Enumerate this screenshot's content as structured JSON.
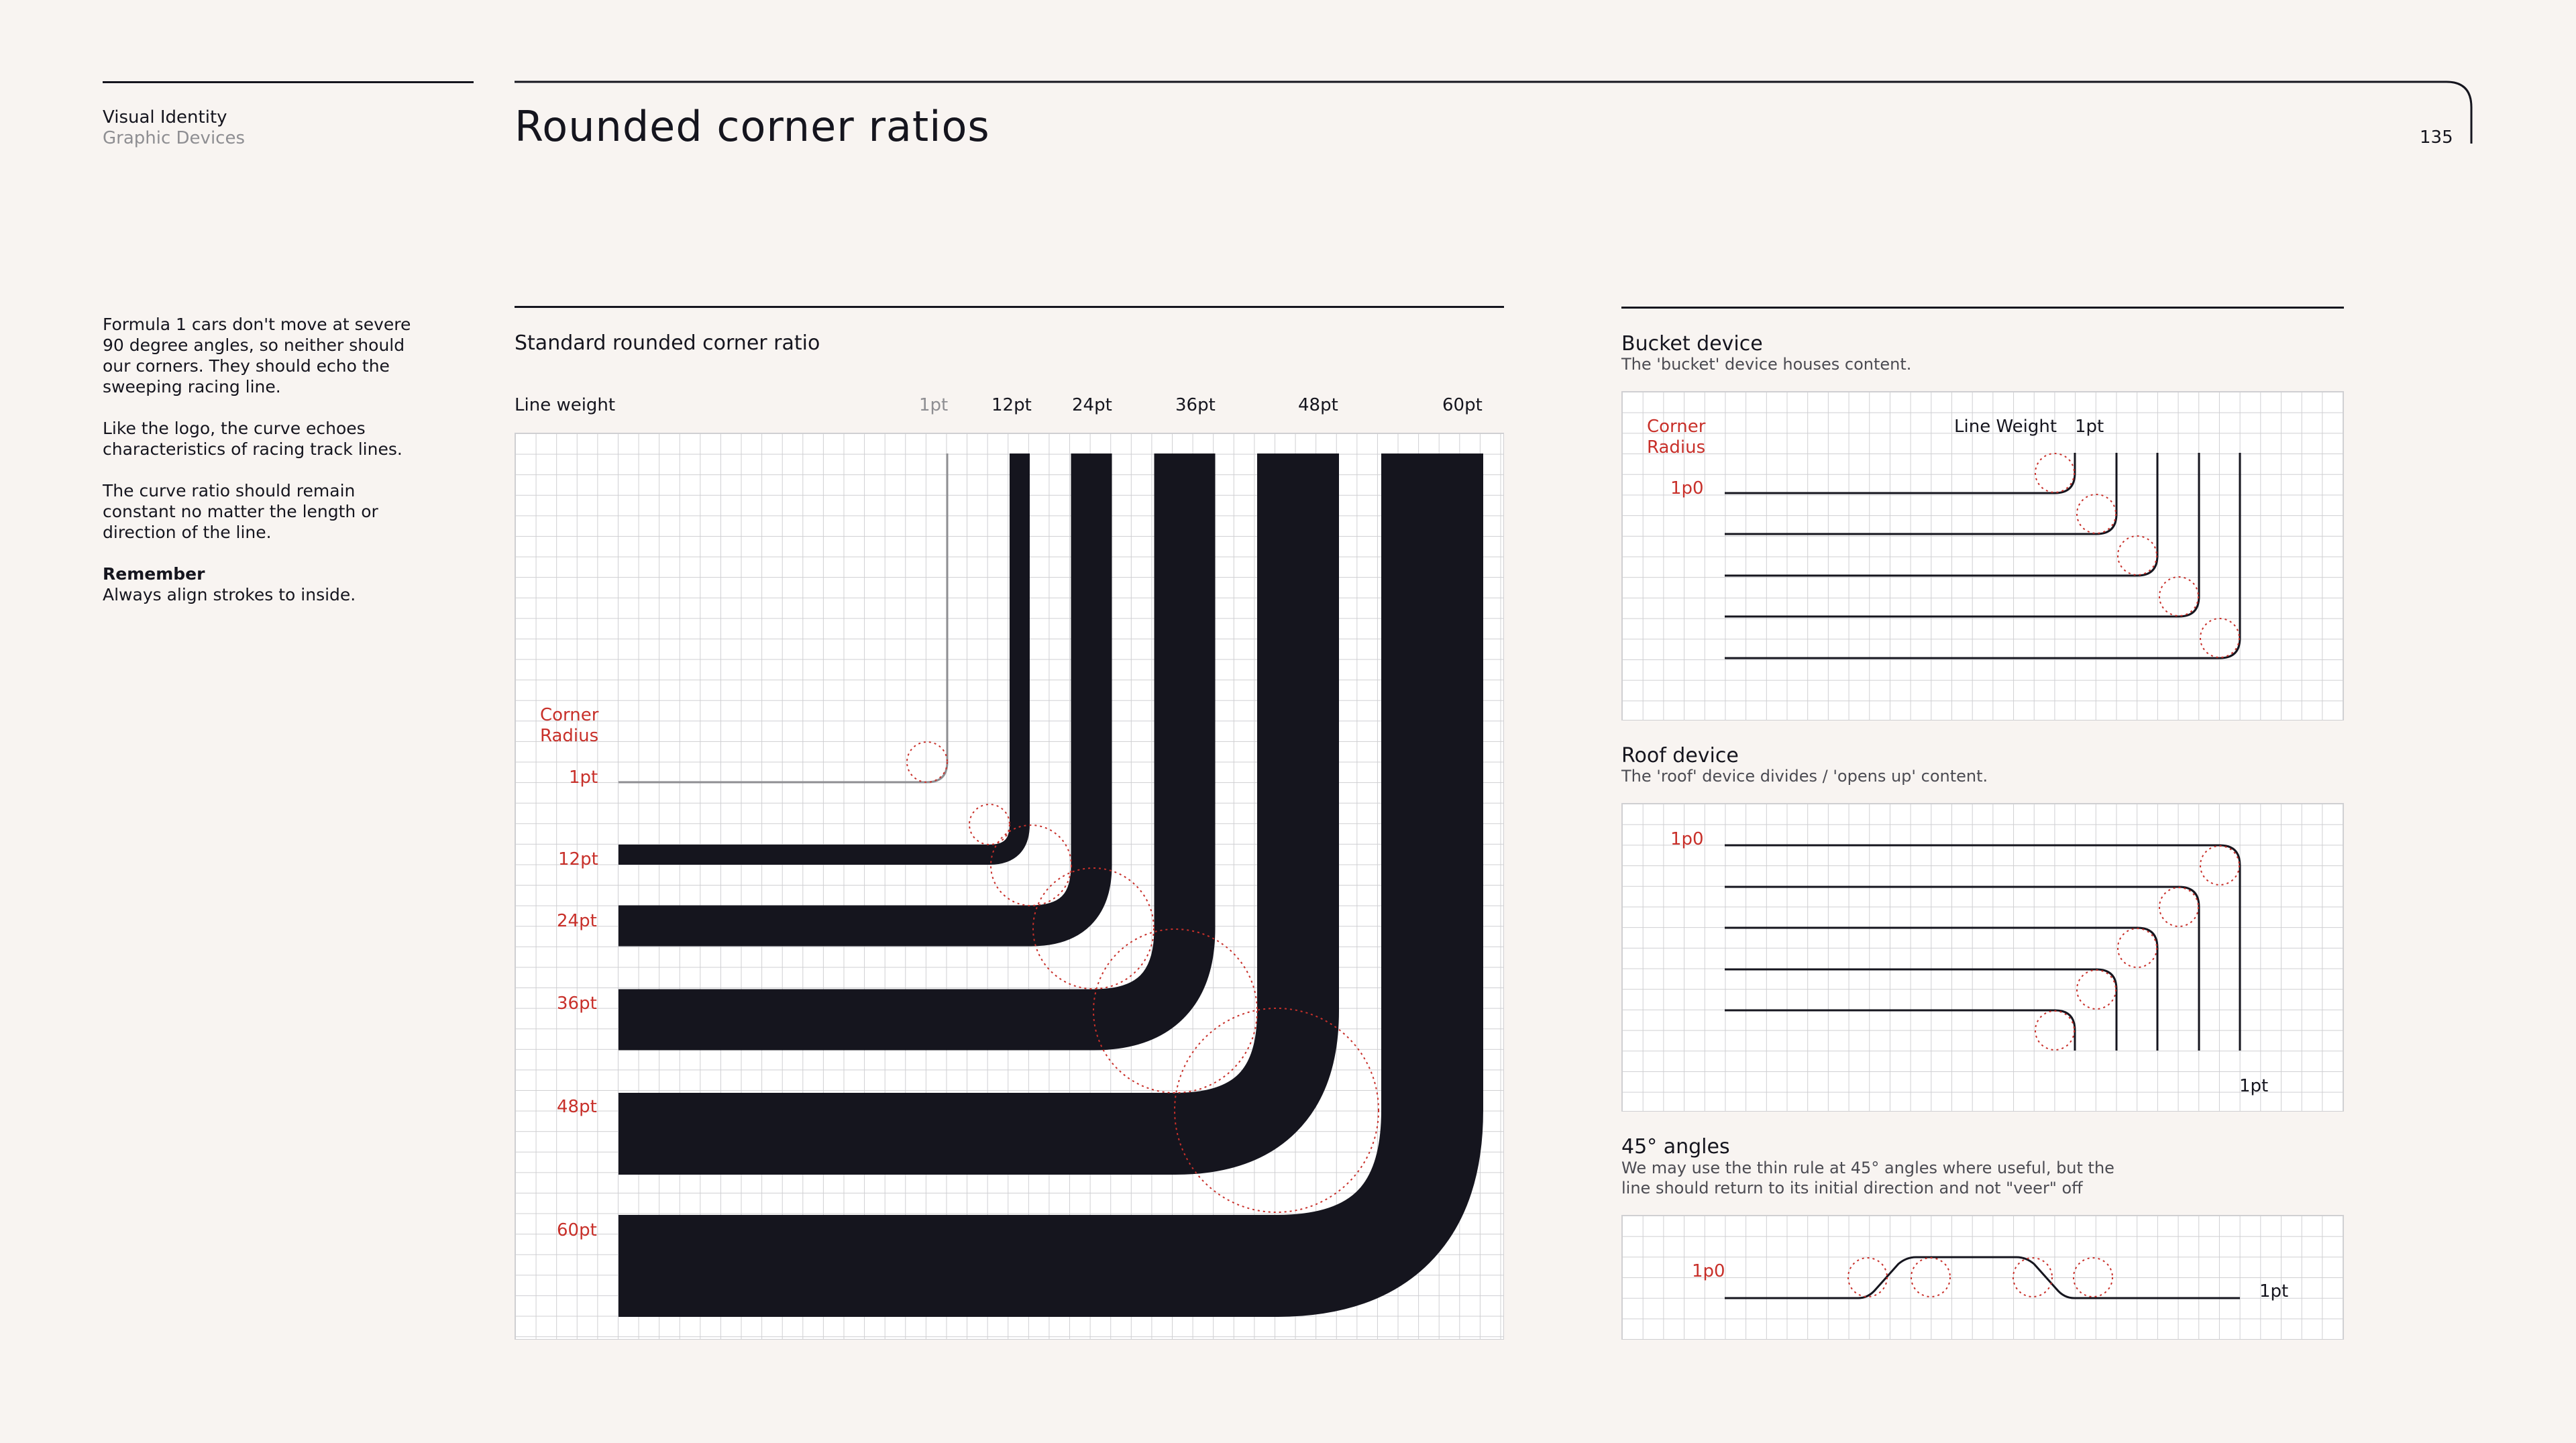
{
  "header": {
    "section": "Visual Identity",
    "subsection": "Graphic Devices",
    "title": "Rounded corner ratios",
    "page_number": "135"
  },
  "intro": {
    "p1": "Formula 1 cars don't move at severe 90 degree angles, so neither should our corners. They should echo the sweeping racing line.",
    "p2": "Like the logo, the curve echoes characteristics of racing track lines.",
    "p3": "The curve ratio should remain constant no matter the length or direction of the line.",
    "remember_title": "Remember",
    "remember_text": "Always align strokes to inside."
  },
  "standard": {
    "title": "Standard rounded corner ratio",
    "line_weight_label": "Line weight",
    "weights": [
      "1pt",
      "12pt",
      "24pt",
      "36pt",
      "48pt",
      "60pt"
    ],
    "corner_radius_label_1": "Corner",
    "corner_radius_label_2": "Radius"
  },
  "bucket": {
    "title": "Bucket device",
    "description": "The 'bucket' device houses content.",
    "corner_radius_label_1": "Corner",
    "corner_radius_label_2": "Radius",
    "radius_value": "1p0",
    "line_weight_label": "Line Weight",
    "line_weight_value": "1pt"
  },
  "roof": {
    "title": "Roof device",
    "description": "The 'roof' device divides / 'opens up' content.",
    "radius_value": "1p0",
    "line_weight_value": "1pt"
  },
  "angles": {
    "title": "45° angles",
    "description_1": "We may use the thin rule at 45° angles where useful, but the",
    "description_2": "line should return to its initial direction and not \"veer\" off",
    "radius_value": "1p0",
    "line_weight_value": "1pt"
  },
  "colors": {
    "background": "#f8f4f1",
    "ink": "#15151e",
    "accent_red": "#c8302a",
    "grid_line": "#cfcfd2"
  }
}
